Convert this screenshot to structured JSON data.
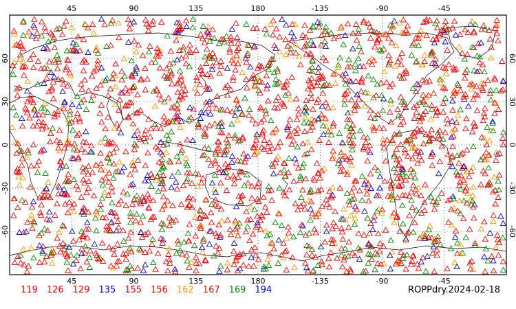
{
  "map": {
    "title": "ROPPdry.2024-02-18",
    "lon_ticks": [
      "45",
      "90",
      "135",
      "180",
      "-135",
      "-90",
      "-45"
    ],
    "lat_ticks_left": [
      "60",
      "30",
      "0",
      "-30",
      "-60"
    ],
    "lat_ticks_right": [
      "60",
      "30",
      "0",
      "-30",
      "-60"
    ],
    "lon_range": [
      0,
      360
    ],
    "lat_range": [
      -90,
      90
    ],
    "gridlines": "dotted",
    "marker": "open triangle",
    "legend": [
      {
        "label": "119",
        "color": "#ff0000"
      },
      {
        "label": "126",
        "color": "#ff0000"
      },
      {
        "label": "129",
        "color": "#ff0000"
      },
      {
        "label": "135",
        "color": "#0000cc"
      },
      {
        "label": "155",
        "color": "#ff0000"
      },
      {
        "label": "156",
        "color": "#ff0000"
      },
      {
        "label": "162",
        "color": "#ff9900"
      },
      {
        "label": "167",
        "color": "#ff0000"
      },
      {
        "label": "169",
        "color": "#008800"
      },
      {
        "label": "194",
        "color": "#0000cc"
      }
    ]
  }
}
